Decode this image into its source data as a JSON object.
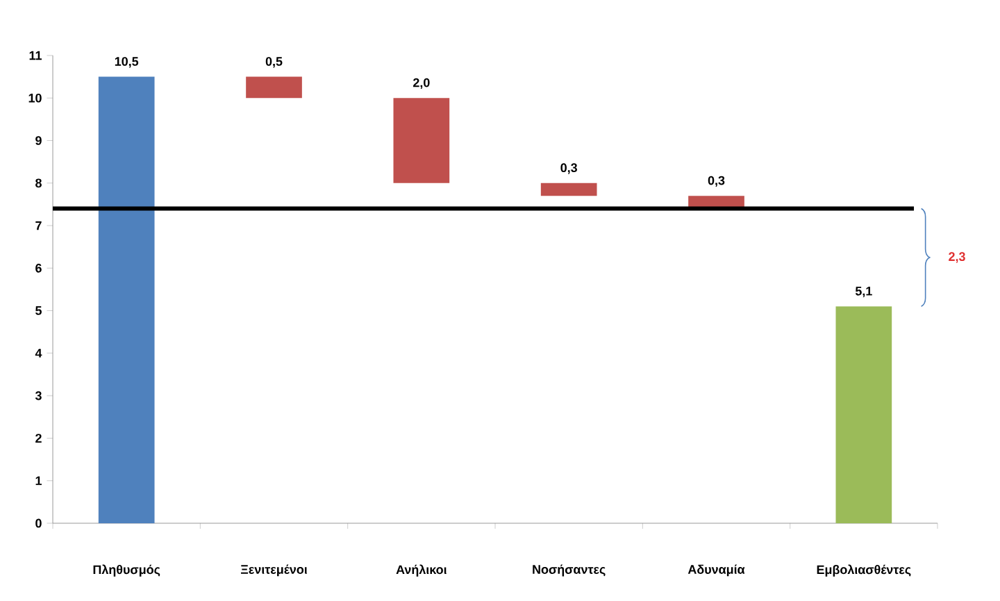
{
  "chart_data": {
    "type": "bar",
    "categories": [
      "Πληθυσμός",
      "Ξενιτεμένοι",
      "Ανήλικοι",
      "Νοσήσαντες",
      "Αδυναμία",
      "Εμβολιασθέντες"
    ],
    "values": [
      10.5,
      0.5,
      2.0,
      0.3,
      0.3,
      5.1
    ],
    "base": [
      0,
      10.0,
      8.0,
      7.7,
      7.4,
      0
    ],
    "colors": [
      "#4f81bd",
      "#c0504d",
      "#c0504d",
      "#c0504d",
      "#c0504d",
      "#9bbb59"
    ],
    "value_labels": [
      "10,5",
      "0,5",
      "2,0",
      "0,3",
      "0,3",
      "5,1"
    ],
    "ylim": [
      0,
      11
    ],
    "yticks": [
      0,
      1,
      2,
      3,
      4,
      5,
      6,
      7,
      8,
      9,
      10,
      11
    ],
    "ref_lines": [
      {
        "axis": "y",
        "value": 7.4,
        "color": "#000000"
      }
    ],
    "annotations": [
      "2,3"
    ]
  }
}
